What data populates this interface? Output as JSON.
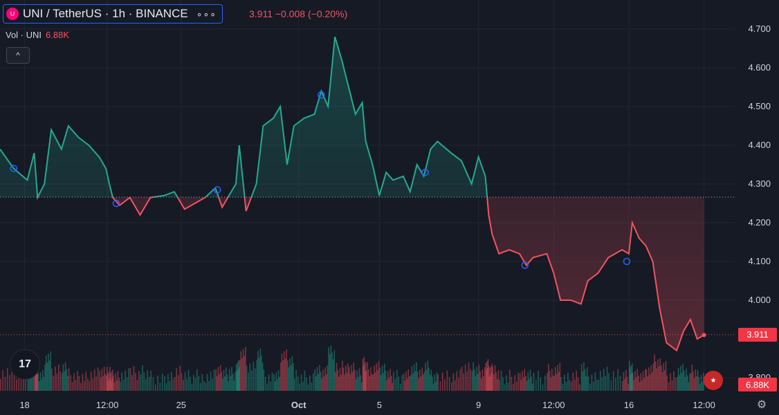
{
  "header": {
    "symbol": "UNI / TetherUS · 1h · BINANCE",
    "logo_text": "U",
    "menu_dots": "∘∘∘",
    "quote": "3.911  −0.008 (−0.20%)"
  },
  "volume": {
    "label": "Vol · UNI",
    "value": "6.88K"
  },
  "collapse_label": "^",
  "tv_logo": "17",
  "settings_icon": "gear-icon",
  "flag_icon": "us-flag-icon",
  "colors": {
    "up": "#22ab94",
    "down": "#f7525f",
    "background": "#161a25",
    "grid": "#232632",
    "accent": "#2962ff"
  },
  "chart_data": {
    "type": "area",
    "baseline": 4.266,
    "last_price": 3.911,
    "last_price_label": "3.911",
    "last_volume_label": "6.88K",
    "ylim": [
      3.78,
      4.73
    ],
    "y_ticks": [
      "3.800",
      "4.000",
      "4.100",
      "4.200",
      "4.300",
      "4.400",
      "4.500",
      "4.600",
      "4.700"
    ],
    "y_tick_values": [
      3.8,
      4.0,
      4.1,
      4.2,
      4.3,
      4.4,
      4.5,
      4.6,
      4.7
    ],
    "x_ticks": [
      "18",
      "12:00",
      "25",
      "Oct",
      "5",
      "9",
      "12:00",
      "16",
      "12:00"
    ],
    "x_tick_positions": [
      0.036,
      0.157,
      0.265,
      0.437,
      0.555,
      0.7,
      0.81,
      0.92,
      1.03
    ],
    "series": [
      {
        "points": [
          [
            0.0,
            4.39
          ],
          [
            0.02,
            4.34
          ],
          [
            0.04,
            4.31
          ],
          [
            0.05,
            4.38
          ],
          [
            0.055,
            4.265
          ],
          [
            0.065,
            4.3
          ],
          [
            0.075,
            4.44
          ],
          [
            0.09,
            4.39
          ],
          [
            0.1,
            4.45
          ],
          [
            0.115,
            4.42
          ],
          [
            0.13,
            4.4
          ],
          [
            0.145,
            4.37
          ],
          [
            0.155,
            4.34
          ],
          [
            0.16,
            4.3
          ],
          [
            0.165,
            4.265
          ],
          [
            0.175,
            4.245
          ],
          [
            0.19,
            4.265
          ],
          [
            0.205,
            4.22
          ],
          [
            0.22,
            4.265
          ],
          [
            0.24,
            4.27
          ],
          [
            0.255,
            4.28
          ],
          [
            0.27,
            4.235
          ],
          [
            0.285,
            4.25
          ],
          [
            0.3,
            4.265
          ],
          [
            0.315,
            4.29
          ],
          [
            0.325,
            4.24
          ],
          [
            0.335,
            4.27
          ],
          [
            0.345,
            4.3
          ],
          [
            0.35,
            4.4
          ],
          [
            0.36,
            4.23
          ],
          [
            0.375,
            4.3
          ],
          [
            0.385,
            4.45
          ],
          [
            0.4,
            4.47
          ],
          [
            0.41,
            4.5
          ],
          [
            0.42,
            4.35
          ],
          [
            0.43,
            4.45
          ],
          [
            0.445,
            4.47
          ],
          [
            0.46,
            4.48
          ],
          [
            0.47,
            4.54
          ],
          [
            0.48,
            4.5
          ],
          [
            0.49,
            4.68
          ],
          [
            0.5,
            4.62
          ],
          [
            0.51,
            4.55
          ],
          [
            0.52,
            4.48
          ],
          [
            0.53,
            4.51
          ],
          [
            0.535,
            4.41
          ],
          [
            0.545,
            4.35
          ],
          [
            0.555,
            4.27
          ],
          [
            0.565,
            4.33
          ],
          [
            0.575,
            4.31
          ],
          [
            0.59,
            4.32
          ],
          [
            0.6,
            4.28
          ],
          [
            0.61,
            4.35
          ],
          [
            0.62,
            4.32
          ],
          [
            0.63,
            4.39
          ],
          [
            0.64,
            4.41
          ],
          [
            0.66,
            4.38
          ],
          [
            0.675,
            4.36
          ],
          [
            0.69,
            4.3
          ],
          [
            0.7,
            4.37
          ],
          [
            0.71,
            4.32
          ],
          [
            0.715,
            4.22
          ],
          [
            0.72,
            4.17
          ],
          [
            0.73,
            4.12
          ],
          [
            0.745,
            4.13
          ],
          [
            0.76,
            4.12
          ],
          [
            0.77,
            4.09
          ],
          [
            0.78,
            4.11
          ],
          [
            0.8,
            4.12
          ],
          [
            0.81,
            4.07
          ],
          [
            0.82,
            4.0
          ],
          [
            0.835,
            4.0
          ],
          [
            0.85,
            3.99
          ],
          [
            0.86,
            4.05
          ],
          [
            0.875,
            4.07
          ],
          [
            0.89,
            4.11
          ],
          [
            0.91,
            4.13
          ],
          [
            0.92,
            4.12
          ],
          [
            0.925,
            4.2
          ],
          [
            0.935,
            4.16
          ],
          [
            0.945,
            4.14
          ],
          [
            0.955,
            4.1
          ],
          [
            0.965,
            3.98
          ],
          [
            0.975,
            3.89
          ],
          [
            0.99,
            3.87
          ],
          [
            1.0,
            3.92
          ],
          [
            1.01,
            3.95
          ],
          [
            1.02,
            3.9
          ],
          [
            1.03,
            3.91
          ]
        ]
      }
    ],
    "markers": [
      [
        0.02,
        4.34
      ],
      [
        0.17,
        4.25
      ],
      [
        0.318,
        4.285
      ],
      [
        0.47,
        4.53
      ],
      [
        0.622,
        4.33
      ],
      [
        0.768,
        4.09
      ],
      [
        0.917,
        4.1
      ]
    ]
  }
}
